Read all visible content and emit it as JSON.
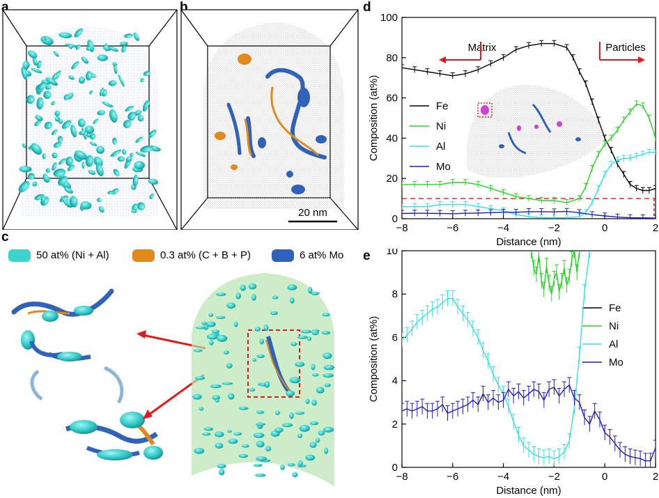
{
  "panels": {
    "a": {
      "letter": "a"
    },
    "b": {
      "letter": "b",
      "scale_bar": "20 nm"
    },
    "c": {
      "letter": "c",
      "legend": [
        {
          "label": "50 at% (Ni + Al)",
          "color": "#3fd3d0"
        },
        {
          "label": "0.3 at% (C + B + P)",
          "color": "#e08a1e"
        },
        {
          "label": "6 at% Mo",
          "color": "#2f62b8"
        }
      ]
    },
    "d": {
      "letter": "d",
      "matrix_label": "Matrix",
      "particles_label": "Particles"
    },
    "e": {
      "letter": "e"
    }
  },
  "colors": {
    "Fe": "#000000",
    "Ni": "#27d627",
    "Al": "#33e0e8",
    "Mo": "#1a1acc",
    "arrow": "#e0191b"
  },
  "chart_data": [
    {
      "type": "line",
      "panel": "d",
      "xlabel": "Distance (nm)",
      "ylabel": "Composition (at%)",
      "xlim": [
        -8,
        2
      ],
      "ylim": [
        0,
        100
      ],
      "xticks": [
        -8,
        -6,
        -4,
        -2,
        0,
        2
      ],
      "yticks": [
        0,
        20,
        40,
        60,
        80,
        100
      ],
      "legend": [
        "Fe",
        "Ni",
        "Al",
        "Mo"
      ],
      "reference_line": 10,
      "series": [
        {
          "name": "Fe",
          "x": [
            -8,
            -7.5,
            -7,
            -6.5,
            -6,
            -5.5,
            -5,
            -4.5,
            -4,
            -3.5,
            -3,
            -2.5,
            -2,
            -1.5,
            -1.25,
            -1,
            -0.75,
            -0.5,
            -0.25,
            0,
            0.25,
            0.5,
            0.75,
            1,
            1.25,
            1.5,
            1.75,
            2
          ],
          "y": [
            75,
            74,
            73,
            72,
            71,
            72,
            74,
            77,
            80,
            84,
            86,
            87,
            87,
            85,
            80,
            73,
            67,
            58,
            49,
            40,
            34,
            27,
            22,
            17,
            15,
            14,
            14,
            15
          ]
        },
        {
          "name": "Ni",
          "x": [
            -8,
            -7.5,
            -7,
            -6.5,
            -6,
            -5.5,
            -5,
            -4.5,
            -4,
            -3.5,
            -3,
            -2.5,
            -2,
            -1.5,
            -1,
            -0.75,
            -0.5,
            -0.25,
            0,
            0.25,
            0.5,
            0.75,
            1,
            1.25,
            1.5,
            1.75,
            2
          ],
          "y": [
            17,
            17,
            17,
            17,
            18,
            18,
            17,
            15,
            13,
            11,
            10,
            9,
            9,
            8,
            10,
            16,
            25,
            32,
            37,
            40,
            44,
            49,
            53,
            57,
            56,
            50,
            40
          ]
        },
        {
          "name": "Al",
          "x": [
            -8,
            -7.5,
            -7,
            -6.5,
            -6,
            -5.5,
            -5,
            -4.5,
            -4,
            -3.5,
            -3,
            -2.5,
            -2,
            -1.5,
            -1,
            -0.75,
            -0.5,
            -0.25,
            0,
            0.25,
            0.5,
            0.75,
            1,
            1.25,
            1.5,
            1.75,
            2
          ],
          "y": [
            6,
            6,
            6,
            7,
            7,
            7,
            6,
            5,
            4,
            2,
            1,
            0.5,
            0.5,
            0.5,
            1,
            3,
            8,
            15,
            22,
            27,
            29,
            30,
            30,
            31,
            32,
            33,
            33
          ]
        },
        {
          "name": "Mo",
          "x": [
            -8,
            -7.5,
            -7,
            -6.5,
            -6,
            -5.5,
            -5,
            -4.5,
            -4,
            -3.5,
            -3,
            -2.5,
            -2,
            -1.5,
            -1,
            -0.5,
            0,
            0.5,
            1,
            1.5,
            2
          ],
          "y": [
            2.6,
            2.7,
            2.7,
            2.6,
            2.5,
            2.7,
            2.8,
            3,
            3.2,
            3.2,
            3.5,
            3.5,
            3.4,
            3.6,
            3,
            2,
            1.4,
            0.8,
            0.5,
            0.4,
            0.3
          ]
        }
      ]
    },
    {
      "type": "line",
      "panel": "e",
      "xlabel": "Distance (nm)",
      "ylabel": "Composition (at%)",
      "xlim": [
        -8,
        2
      ],
      "ylim": [
        0,
        10
      ],
      "xticks": [
        -8,
        -6,
        -4,
        -2,
        0,
        2
      ],
      "yticks": [
        0,
        2,
        4,
        6,
        8,
        10
      ],
      "legend": [
        "Fe",
        "Ni",
        "Al",
        "Mo"
      ],
      "series": [
        {
          "name": "Ni",
          "x": [
            -2.9,
            -2.8,
            -2.7,
            -2.6,
            -2.5,
            -2.4,
            -2.3,
            -2.2,
            -2.1,
            -2,
            -1.9,
            -1.8,
            -1.7,
            -1.6,
            -1.5,
            -1.4,
            -1.3,
            -1.2,
            -1.1,
            -1.0
          ],
          "y": [
            10,
            9.2,
            8.9,
            9.8,
            8.6,
            8.2,
            9.3,
            8.5,
            8.0,
            8.7,
            9.0,
            8.1,
            8.6,
            9.2,
            8.4,
            8.8,
            9.6,
            10,
            9.0,
            10
          ]
        },
        {
          "name": "Al",
          "x": [
            -8,
            -7.8,
            -7.6,
            -7.4,
            -7.2,
            -7,
            -6.8,
            -6.6,
            -6.4,
            -6.2,
            -6,
            -5.8,
            -5.6,
            -5.4,
            -5.2,
            -5,
            -4.8,
            -4.6,
            -4.4,
            -4.2,
            -4,
            -3.8,
            -3.6,
            -3.4,
            -3.2,
            -3,
            -2.8,
            -2.6,
            -2.4,
            -2.2,
            -2,
            -1.8,
            -1.6,
            -1.4,
            -1.2,
            -1,
            -0.8,
            -0.6
          ],
          "y": [
            5.9,
            6.1,
            6.4,
            6.7,
            6.9,
            7.1,
            7.3,
            7.4,
            7.6,
            7.8,
            7.8,
            7.4,
            7.1,
            6.8,
            6.4,
            6.0,
            5.4,
            4.9,
            4.3,
            3.8,
            3.4,
            2.8,
            2.1,
            1.5,
            1.0,
            0.8,
            0.6,
            0.5,
            0.45,
            0.5,
            0.4,
            0.5,
            0.7,
            1.2,
            2.8,
            5.2,
            8.1,
            10
          ]
        },
        {
          "name": "Mo",
          "x": [
            -8,
            -7.8,
            -7.6,
            -7.4,
            -7.2,
            -7,
            -6.8,
            -6.6,
            -6.4,
            -6.2,
            -6,
            -5.8,
            -5.6,
            -5.4,
            -5.2,
            -5,
            -4.8,
            -4.6,
            -4.4,
            -4.2,
            -4,
            -3.8,
            -3.6,
            -3.4,
            -3.2,
            -3,
            -2.8,
            -2.6,
            -2.4,
            -2.2,
            -2,
            -1.8,
            -1.6,
            -1.4,
            -1.2,
            -1,
            -0.8,
            -0.6,
            -0.4,
            -0.2,
            0,
            0.2,
            0.4,
            0.6,
            0.8,
            1,
            1.2,
            1.4,
            1.6,
            1.8,
            2
          ],
          "y": [
            2.6,
            2.7,
            2.6,
            2.7,
            2.8,
            2.6,
            2.6,
            2.7,
            2.9,
            2.5,
            2.6,
            2.7,
            2.8,
            2.9,
            3.1,
            2.9,
            3.4,
            3.0,
            3.2,
            3.0,
            3.1,
            3.6,
            3.3,
            3.5,
            3.2,
            3.4,
            3.6,
            3.5,
            3.1,
            3.6,
            3.7,
            3.3,
            3.6,
            3.8,
            3.2,
            3.0,
            2.3,
            2.0,
            2.6,
            2.2,
            1.6,
            1.4,
            1.1,
            0.8,
            0.6,
            0.5,
            0.45,
            0.4,
            0.3,
            0.3,
            0.9
          ]
        }
      ]
    }
  ]
}
